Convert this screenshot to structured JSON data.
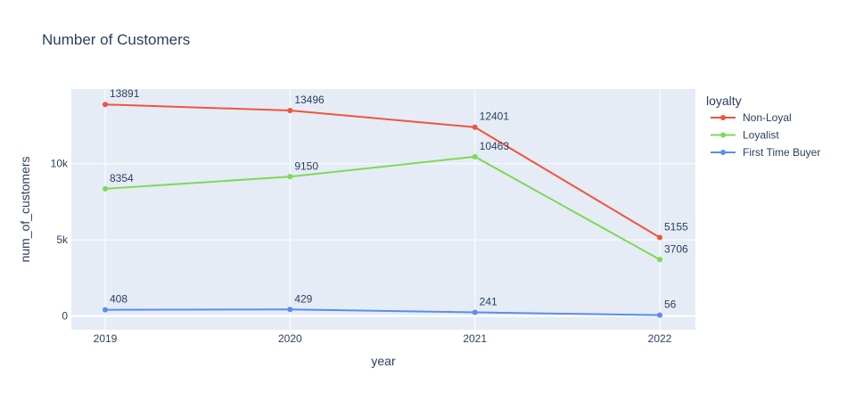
{
  "chart_data": {
    "type": "line",
    "title": "Number of Customers",
    "xlabel": "year",
    "ylabel": "num_of_customers",
    "x": [
      "2019",
      "2020",
      "2021",
      "2022"
    ],
    "ylim": [
      -900,
      14900
    ],
    "yticks": [
      0,
      5000,
      10000
    ],
    "ytick_labels": [
      "0",
      "5k",
      "10k"
    ],
    "grid": true,
    "legend": {
      "title": "loyalty",
      "position": "right"
    },
    "series": [
      {
        "name": "Non-Loyal",
        "color": "#EF553B",
        "values": [
          13891,
          13496,
          12401,
          5155
        ]
      },
      {
        "name": "Loyalist",
        "color": "#7ED957",
        "values": [
          8354,
          9150,
          10463,
          3706
        ]
      },
      {
        "name": "First Time Buyer",
        "color": "#5B8DEF",
        "values": [
          408,
          429,
          241,
          56
        ]
      }
    ]
  }
}
